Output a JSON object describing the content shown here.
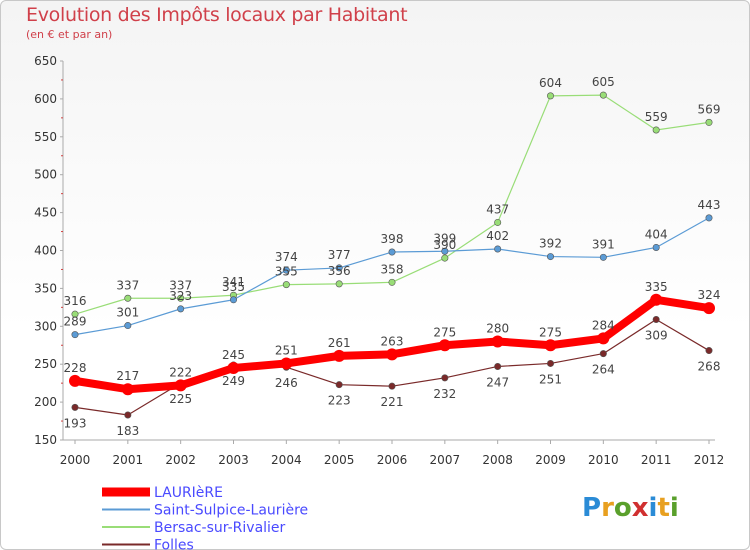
{
  "title": "Evolution des Impôts locaux par Habitant",
  "subtitle": "(en € et par an)",
  "logo": {
    "letters": [
      "P",
      "r",
      "o",
      "x",
      "i",
      "t",
      "i"
    ],
    "colors": [
      "#2a8bd6",
      "#e8a020",
      "#5aa02c",
      "#d03030",
      "#2a8bd6",
      "#e8a020",
      "#5aa02c"
    ]
  },
  "chart_data": {
    "type": "line",
    "title": "Evolution des Impôts locaux par Habitant",
    "subtitle": "(en € et par an)",
    "xlabel": "",
    "ylabel": "",
    "x": [
      "2000",
      "2001",
      "2002",
      "2003",
      "2004",
      "2005",
      "2006",
      "2007",
      "2008",
      "2009",
      "2010",
      "2011",
      "2012"
    ],
    "ylim": [
      150,
      650
    ],
    "yticks": [
      "150",
      "200",
      "250",
      "300",
      "350",
      "400",
      "450",
      "500",
      "550",
      "600",
      "650"
    ],
    "grid": false,
    "legend_position": "bottom-left",
    "series": [
      {
        "name": "LAURIèRE",
        "color": "#ff0000",
        "values": [
          228,
          217,
          222,
          245,
          251,
          261,
          263,
          275,
          280,
          275,
          284,
          335,
          324
        ],
        "labels": [
          "228",
          "217",
          "222",
          "245",
          "251",
          "261",
          "263",
          "275",
          "280",
          "275",
          "284",
          "335",
          "324"
        ]
      },
      {
        "name": "Saint-Sulpice-Laurière",
        "color": "#5b9bd5",
        "values": [
          289,
          301,
          323,
          335,
          374,
          377,
          398,
          399,
          402,
          392,
          391,
          404,
          443
        ],
        "labels": [
          "289",
          "301",
          "323",
          "335",
          "374",
          "377",
          "398",
          "399",
          "402",
          "392",
          "391",
          "404",
          "443"
        ]
      },
      {
        "name": "Bersac-sur-Rivalier",
        "color": "#99dd77",
        "values": [
          316,
          337,
          337,
          341,
          355,
          356,
          358,
          390,
          437,
          604,
          605,
          559,
          569
        ],
        "labels": [
          "316",
          "337",
          "337",
          "341",
          "355",
          "356",
          "358",
          "390",
          "437",
          "604",
          "605",
          "559",
          "569"
        ]
      },
      {
        "name": "Folles",
        "color": "#7a2a2a",
        "values": [
          193,
          183,
          225,
          249,
          246,
          223,
          221,
          232,
          247,
          251,
          264,
          309,
          268
        ],
        "labels": [
          "193",
          "183",
          "225",
          "249",
          "246",
          "223",
          "221",
          "232",
          "247",
          "251",
          "264",
          "309",
          "268"
        ]
      }
    ]
  }
}
